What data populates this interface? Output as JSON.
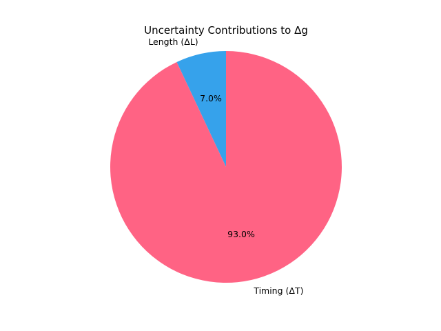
{
  "chart_data": {
    "type": "pie",
    "title": "Uncertainty Contributions to Δg",
    "start_angle_deg": 90,
    "direction": "counterclockwise",
    "slices": [
      {
        "label": "Length (ΔL)",
        "value": 7.0,
        "pct_label": "7.0%",
        "color": "#36a2eb"
      },
      {
        "label": "Timing (ΔT)",
        "value": 93.0,
        "pct_label": "93.0%",
        "color": "#ff6384"
      }
    ]
  }
}
